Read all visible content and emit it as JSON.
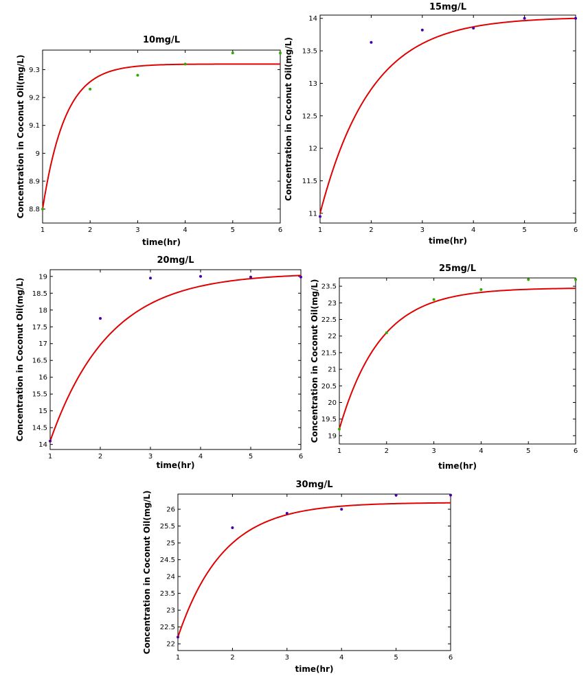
{
  "chart_data": [
    {
      "type": "scatter",
      "title": "10mg/L",
      "xlabel": "time(hr)",
      "ylabel": "Concentration in Coconut Oil(mg/L)",
      "xlim": [
        1,
        6
      ],
      "ylim": [
        8.75,
        9.37
      ],
      "xticks": [
        "1",
        "2",
        "3",
        "4",
        "5",
        "6"
      ],
      "yticks": [
        "8.8",
        "8.9",
        "9",
        "9.1",
        "9.2",
        "9.3"
      ],
      "marker_color": "#33aa00",
      "fit_color": "#e00000",
      "series": [
        {
          "x": [
            1,
            2,
            3,
            4,
            5,
            6
          ],
          "y": [
            8.8,
            9.23,
            9.28,
            9.32,
            9.36,
            9.36
          ]
        }
      ],
      "fit": {
        "model": "exponential",
        "start": 8.8,
        "plateau": 9.32,
        "rate": 2.1
      }
    },
    {
      "type": "scatter",
      "title": "15mg/L",
      "xlabel": "time(hr)",
      "ylabel": "Concentration in Coconut Oil(mg/L)",
      "xlim": [
        1,
        6
      ],
      "ylim": [
        10.85,
        14.05
      ],
      "xticks": [
        "1",
        "2",
        "3",
        "4",
        "5",
        "6"
      ],
      "yticks": [
        "11",
        "11.5",
        "12",
        "12.5",
        "13",
        "13.5",
        "14"
      ],
      "marker_color": "#4400aa",
      "fit_color": "#e00000",
      "series": [
        {
          "x": [
            1,
            2,
            3,
            4,
            5,
            6
          ],
          "y": [
            10.95,
            13.63,
            13.82,
            13.85,
            14.0,
            14.0
          ]
        }
      ],
      "fit": {
        "model": "exponential",
        "start": 11.0,
        "plateau": 14.02,
        "rate": 1.0
      }
    },
    {
      "type": "scatter",
      "title": "20mg/L",
      "xlabel": "time(hr)",
      "ylabel": "Concentration in Coconut Oil(mg/L)",
      "xlim": [
        1,
        6
      ],
      "ylim": [
        13.85,
        19.2
      ],
      "xticks": [
        "1",
        "2",
        "3",
        "4",
        "5",
        "6"
      ],
      "yticks": [
        "14",
        "14.5",
        "15",
        "15.5",
        "16",
        "16.5",
        "17",
        "17.5",
        "18",
        "18.5",
        "19"
      ],
      "marker_color": "#4400aa",
      "fit_color": "#e00000",
      "series": [
        {
          "x": [
            1,
            2,
            3,
            4,
            5,
            6
          ],
          "y": [
            14.1,
            17.75,
            18.95,
            19.0,
            18.98,
            18.98
          ]
        }
      ],
      "fit": {
        "model": "exponential",
        "start": 14.1,
        "plateau": 19.1,
        "rate": 0.85
      }
    },
    {
      "type": "scatter",
      "title": "25mg/L",
      "xlabel": "time(hr)",
      "ylabel": "Concentration in Coconut Oil(mg/L)",
      "xlim": [
        1,
        6
      ],
      "ylim": [
        18.75,
        23.75
      ],
      "xticks": [
        "1",
        "2",
        "3",
        "4",
        "5",
        "6"
      ],
      "yticks": [
        "19",
        "19.5",
        "20",
        "20.5",
        "21",
        "21.5",
        "22",
        "22.5",
        "23",
        "23.5"
      ],
      "marker_color": "#33aa00",
      "fit_color": "#e00000",
      "series": [
        {
          "x": [
            1,
            2,
            3,
            4,
            5,
            6
          ],
          "y": [
            19.2,
            22.1,
            23.1,
            23.4,
            23.7,
            23.7
          ]
        }
      ],
      "fit": {
        "model": "exponential",
        "start": 19.2,
        "plateau": 23.45,
        "rate": 1.15
      }
    },
    {
      "type": "scatter",
      "title": "30mg/L",
      "xlabel": "time(hr)",
      "ylabel": "Concentration in Coconut Oil(mg/L)",
      "xlim": [
        1,
        6
      ],
      "ylim": [
        21.8,
        26.45
      ],
      "xticks": [
        "1",
        "2",
        "3",
        "4",
        "5",
        "6"
      ],
      "yticks": [
        "22",
        "22.5",
        "23",
        "23.5",
        "24",
        "24.5",
        "25",
        "25.5",
        "26"
      ],
      "marker_color": "#4400aa",
      "fit_color": "#e00000",
      "series": [
        {
          "x": [
            1,
            2,
            3,
            4,
            5,
            6
          ],
          "y": [
            22.2,
            25.45,
            25.88,
            26.0,
            26.42,
            26.42
          ]
        }
      ],
      "fit": {
        "model": "exponential",
        "start": 22.2,
        "plateau": 26.2,
        "rate": 1.2
      }
    }
  ]
}
